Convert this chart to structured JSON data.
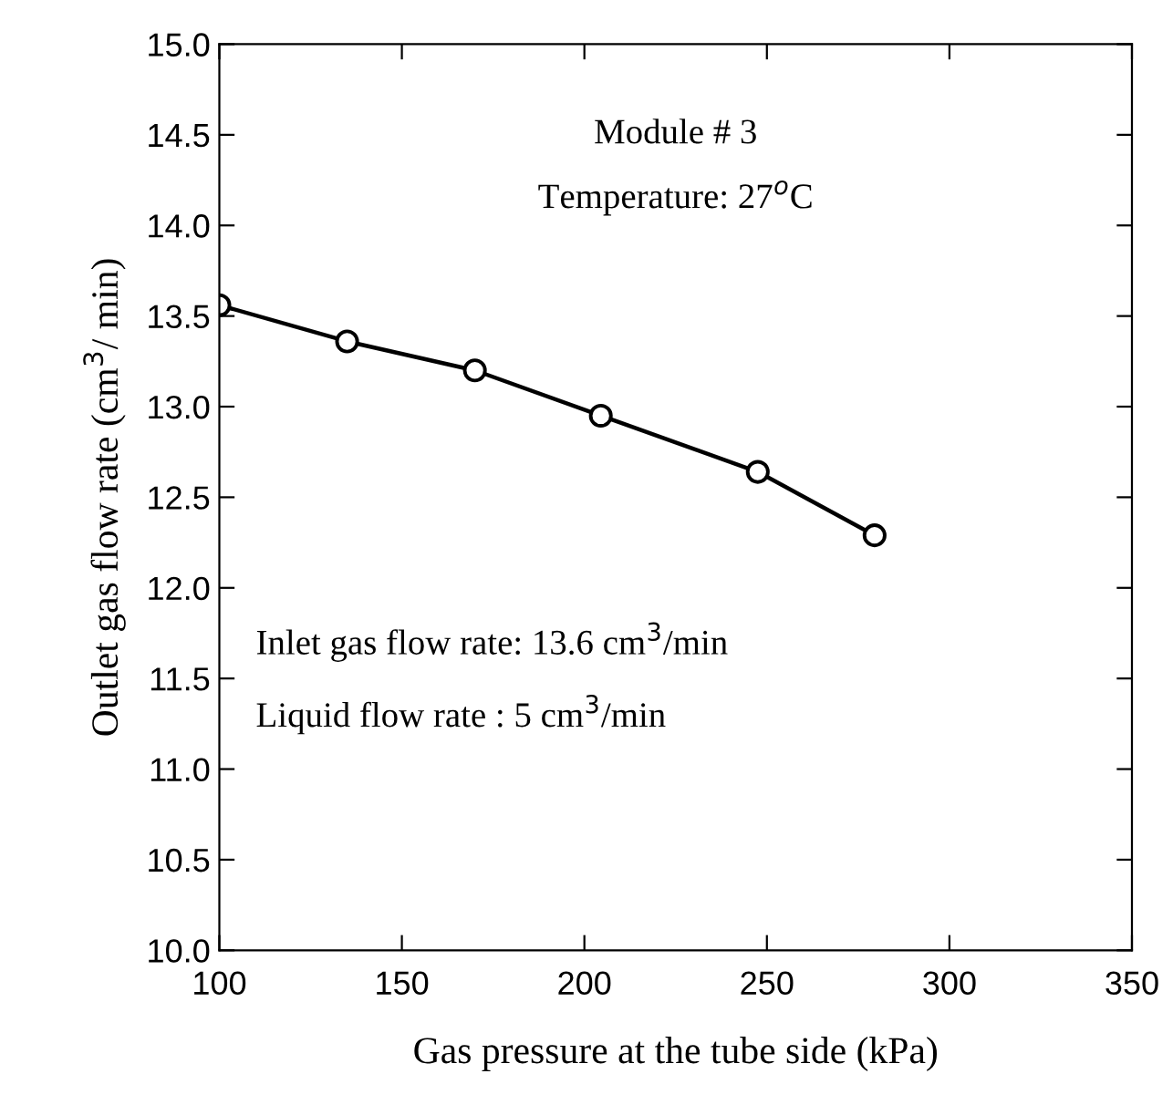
{
  "chart_data": {
    "type": "line",
    "xlabel": "Gas pressure at the tube side (kPa)",
    "ylabel": "Outlet gas flow rate (cm$^{3}$/ min)",
    "annotations": [
      "Module # 3",
      "Temperature: 27$^{o}$C",
      "Inlet gas flow rate: 13.6 cm$^{3}$/min",
      "Liquid flow rate : 5 cm$^{3}$/min"
    ],
    "x": [
      100,
      135,
      170,
      204.5,
      247.5,
      279.5
    ],
    "series": [
      {
        "color": "#000000",
        "values": [
          13.56,
          13.36,
          13.2,
          12.95,
          12.64,
          12.29
        ]
      }
    ],
    "marker": "circle",
    "line_style": "solid",
    "xlim": [
      100,
      350
    ],
    "xticks": [
      100,
      150,
      200,
      250,
      300,
      350
    ],
    "ylim": [
      10,
      15
    ],
    "yticks": [
      {
        "value": 10,
        "label": "10.0"
      },
      10.5,
      {
        "value": 11,
        "label": "11.0"
      },
      11.5,
      {
        "value": 12,
        "label": "12.0"
      },
      12.5,
      {
        "value": 13,
        "label": "13.0"
      },
      13.5,
      {
        "value": 14,
        "label": "14.0"
      },
      14.5,
      {
        "value": 15,
        "label": "15.0"
      }
    ],
    "grid": false,
    "legend": false
  }
}
